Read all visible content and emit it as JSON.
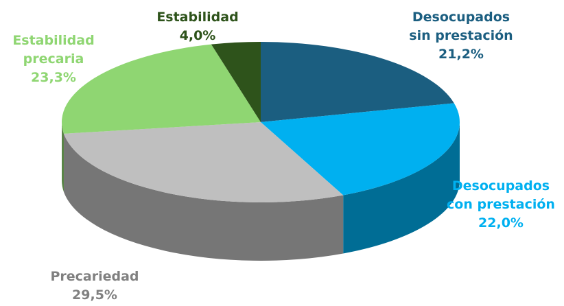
{
  "chart_data": {
    "type": "pie",
    "categories": [
      "Desocupados sin prestación",
      "Desocupados con prestación",
      "Precariedad",
      "Estabilidad precaria",
      "Estabilidad"
    ],
    "values": [
      21.2,
      22.0,
      29.5,
      23.3,
      4.0
    ],
    "value_labels": [
      "21,2%",
      "22,0%",
      "29,5%",
      "23,3%",
      "4,0%"
    ],
    "colors": [
      "#1b5e80",
      "#00b0f0",
      "#bfbfbf",
      "#8fd672",
      "#2e531b"
    ]
  }
}
